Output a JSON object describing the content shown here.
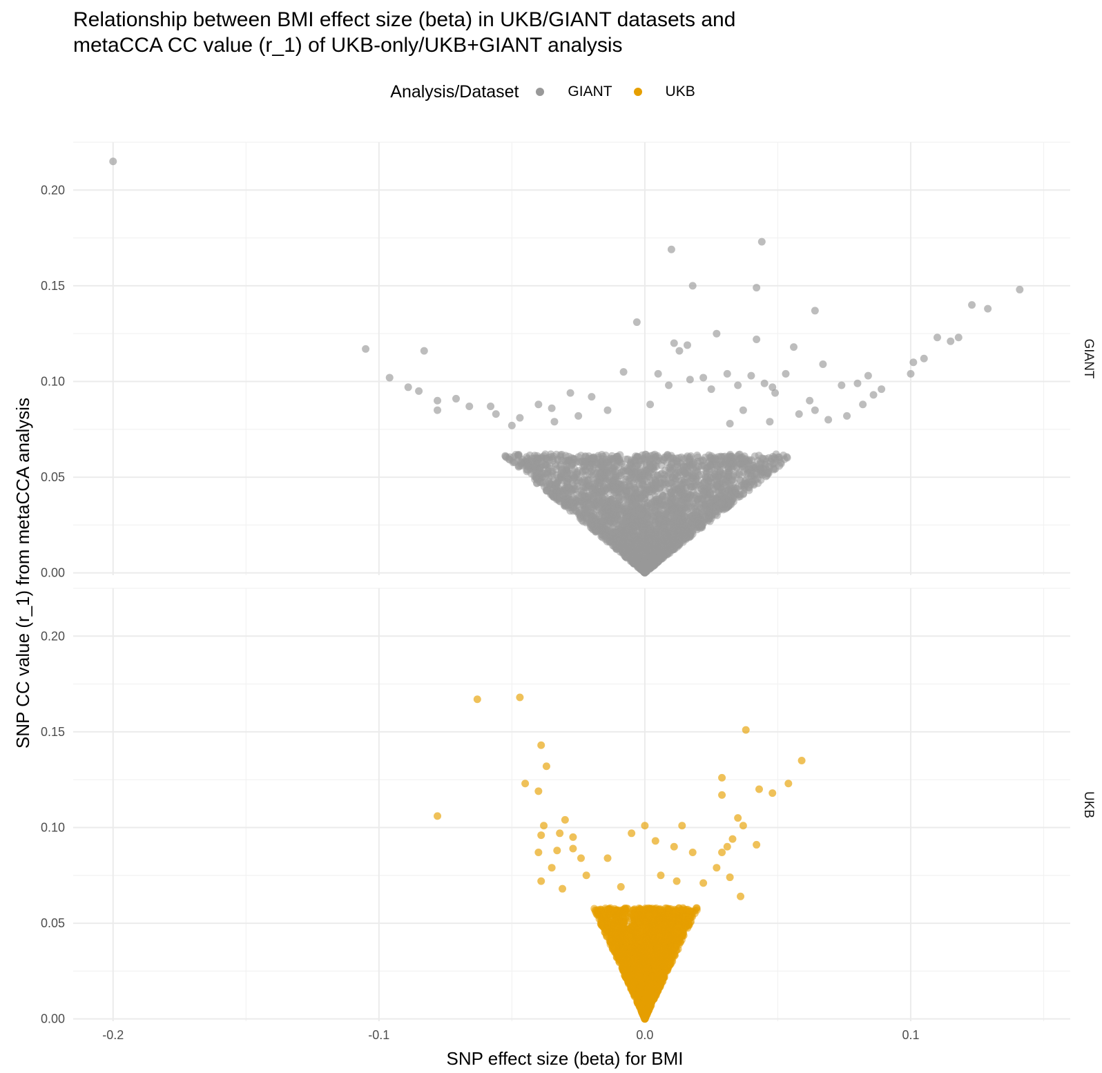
{
  "chart_data": {
    "type": "scatter",
    "title_lines": [
      "Relationship between BMI effect size (beta) in UKB/GIANT datasets and",
      "metaCCA CC value (r_1) of UKB-only/UKB+GIANT analysis"
    ],
    "xlabel": "SNP effect size (beta) for BMI",
    "ylabel": "SNP CC value (r_1) from metaCCA analysis",
    "xlim": [
      -0.215,
      0.16
    ],
    "ylim": [
      -0.0012,
      0.225
    ],
    "x_ticks": [
      -0.2,
      -0.1,
      0.0,
      0.1
    ],
    "x_tick_labels": [
      "-0.2",
      "-0.1",
      "0.0",
      "0.1"
    ],
    "y_ticks": [
      0.0,
      0.05,
      0.1,
      0.15,
      0.2
    ],
    "y_tick_labels": [
      "0.00",
      "0.05",
      "0.10",
      "0.15",
      "0.20"
    ],
    "legend": {
      "title": "Analysis/Dataset",
      "position": "top",
      "entries": [
        {
          "label": "GIANT",
          "color": "#999999"
        },
        {
          "label": "UKB",
          "color": "#E69F00"
        }
      ]
    },
    "facets": [
      {
        "name": "GIANT",
        "color": "#999999",
        "v_shape": {
          "slope_left": 1.15,
          "slope_right": 1.1,
          "core_max": 0.062
        },
        "points": [
          {
            "x": -0.2,
            "y": 0.215
          },
          {
            "x": -0.105,
            "y": 0.117
          },
          {
            "x": -0.083,
            "y": 0.116
          },
          {
            "x": -0.096,
            "y": 0.102
          },
          {
            "x": -0.089,
            "y": 0.097
          },
          {
            "x": -0.085,
            "y": 0.095
          },
          {
            "x": -0.078,
            "y": 0.09
          },
          {
            "x": -0.071,
            "y": 0.091
          },
          {
            "x": -0.078,
            "y": 0.085
          },
          {
            "x": -0.066,
            "y": 0.087
          },
          {
            "x": -0.058,
            "y": 0.087
          },
          {
            "x": -0.056,
            "y": 0.083
          },
          {
            "x": -0.047,
            "y": 0.081
          },
          {
            "x": -0.04,
            "y": 0.088
          },
          {
            "x": -0.035,
            "y": 0.086
          },
          {
            "x": -0.028,
            "y": 0.094
          },
          {
            "x": -0.02,
            "y": 0.092
          },
          {
            "x": -0.014,
            "y": 0.085
          },
          {
            "x": 0.002,
            "y": 0.088
          },
          {
            "x": 0.005,
            "y": 0.104
          },
          {
            "x": -0.008,
            "y": 0.105
          },
          {
            "x": -0.003,
            "y": 0.131
          },
          {
            "x": 0.01,
            "y": 0.169
          },
          {
            "x": 0.018,
            "y": 0.15
          },
          {
            "x": 0.011,
            "y": 0.12
          },
          {
            "x": 0.013,
            "y": 0.116
          },
          {
            "x": 0.016,
            "y": 0.119
          },
          {
            "x": 0.027,
            "y": 0.125
          },
          {
            "x": 0.044,
            "y": 0.173
          },
          {
            "x": 0.042,
            "y": 0.149
          },
          {
            "x": 0.042,
            "y": 0.122
          },
          {
            "x": 0.064,
            "y": 0.137
          },
          {
            "x": 0.056,
            "y": 0.118
          },
          {
            "x": 0.009,
            "y": 0.098
          },
          {
            "x": 0.017,
            "y": 0.101
          },
          {
            "x": 0.022,
            "y": 0.102
          },
          {
            "x": 0.031,
            "y": 0.104
          },
          {
            "x": 0.04,
            "y": 0.103
          },
          {
            "x": 0.045,
            "y": 0.099
          },
          {
            "x": 0.048,
            "y": 0.097
          },
          {
            "x": 0.053,
            "y": 0.104
          },
          {
            "x": 0.067,
            "y": 0.109
          },
          {
            "x": 0.035,
            "y": 0.098
          },
          {
            "x": 0.025,
            "y": 0.096
          },
          {
            "x": 0.049,
            "y": 0.094
          },
          {
            "x": 0.062,
            "y": 0.09
          },
          {
            "x": 0.074,
            "y": 0.098
          },
          {
            "x": 0.08,
            "y": 0.099
          },
          {
            "x": 0.084,
            "y": 0.103
          },
          {
            "x": 0.089,
            "y": 0.096
          },
          {
            "x": 0.086,
            "y": 0.093
          },
          {
            "x": 0.082,
            "y": 0.088
          },
          {
            "x": 0.076,
            "y": 0.082
          },
          {
            "x": 0.069,
            "y": 0.08
          },
          {
            "x": 0.1,
            "y": 0.104
          },
          {
            "x": 0.101,
            "y": 0.11
          },
          {
            "x": 0.105,
            "y": 0.112
          },
          {
            "x": 0.11,
            "y": 0.123
          },
          {
            "x": 0.115,
            "y": 0.121
          },
          {
            "x": 0.118,
            "y": 0.123
          },
          {
            "x": 0.123,
            "y": 0.14
          },
          {
            "x": 0.129,
            "y": 0.138
          },
          {
            "x": 0.141,
            "y": 0.148
          },
          {
            "x": 0.058,
            "y": 0.083
          },
          {
            "x": 0.064,
            "y": 0.085
          },
          {
            "x": 0.037,
            "y": 0.085
          },
          {
            "x": 0.032,
            "y": 0.078
          },
          {
            "x": 0.047,
            "y": 0.079
          },
          {
            "x": -0.034,
            "y": 0.079
          },
          {
            "x": -0.025,
            "y": 0.082
          },
          {
            "x": -0.05,
            "y": 0.077
          }
        ]
      },
      {
        "name": "UKB",
        "color": "#E69F00",
        "v_shape": {
          "slope_left": 3.0,
          "slope_right": 2.9,
          "core_max": 0.058
        },
        "points": [
          {
            "x": -0.078,
            "y": 0.106
          },
          {
            "x": -0.063,
            "y": 0.167
          },
          {
            "x": -0.047,
            "y": 0.168
          },
          {
            "x": -0.039,
            "y": 0.143
          },
          {
            "x": -0.037,
            "y": 0.132
          },
          {
            "x": -0.045,
            "y": 0.123
          },
          {
            "x": -0.04,
            "y": 0.119
          },
          {
            "x": -0.038,
            "y": 0.101
          },
          {
            "x": -0.039,
            "y": 0.096
          },
          {
            "x": -0.04,
            "y": 0.087
          },
          {
            "x": -0.03,
            "y": 0.104
          },
          {
            "x": -0.032,
            "y": 0.097
          },
          {
            "x": -0.033,
            "y": 0.088
          },
          {
            "x": -0.027,
            "y": 0.095
          },
          {
            "x": -0.027,
            "y": 0.089
          },
          {
            "x": -0.024,
            "y": 0.084
          },
          {
            "x": -0.014,
            "y": 0.084
          },
          {
            "x": -0.035,
            "y": 0.079
          },
          {
            "x": -0.039,
            "y": 0.072
          },
          {
            "x": -0.031,
            "y": 0.068
          },
          {
            "x": -0.022,
            "y": 0.075
          },
          {
            "x": -0.005,
            "y": 0.097
          },
          {
            "x": 0.0,
            "y": 0.101
          },
          {
            "x": 0.004,
            "y": 0.093
          },
          {
            "x": 0.011,
            "y": 0.09
          },
          {
            "x": 0.014,
            "y": 0.101
          },
          {
            "x": 0.018,
            "y": 0.087
          },
          {
            "x": 0.038,
            "y": 0.151
          },
          {
            "x": 0.029,
            "y": 0.126
          },
          {
            "x": 0.029,
            "y": 0.117
          },
          {
            "x": 0.035,
            "y": 0.105
          },
          {
            "x": 0.037,
            "y": 0.101
          },
          {
            "x": 0.033,
            "y": 0.094
          },
          {
            "x": 0.029,
            "y": 0.087
          },
          {
            "x": 0.031,
            "y": 0.09
          },
          {
            "x": 0.043,
            "y": 0.12
          },
          {
            "x": 0.048,
            "y": 0.118
          },
          {
            "x": 0.054,
            "y": 0.123
          },
          {
            "x": 0.059,
            "y": 0.135
          },
          {
            "x": 0.042,
            "y": 0.091
          },
          {
            "x": 0.027,
            "y": 0.079
          },
          {
            "x": 0.032,
            "y": 0.074
          },
          {
            "x": 0.036,
            "y": 0.064
          },
          {
            "x": 0.006,
            "y": 0.075
          },
          {
            "x": -0.009,
            "y": 0.069
          },
          {
            "x": 0.012,
            "y": 0.072
          },
          {
            "x": 0.022,
            "y": 0.071
          }
        ]
      }
    ]
  }
}
